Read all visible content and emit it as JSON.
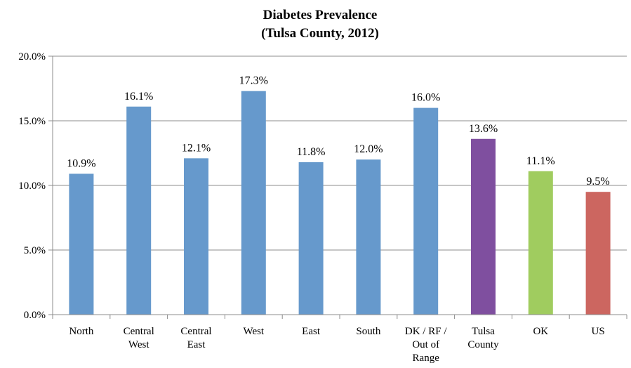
{
  "chart_data": {
    "type": "bar",
    "title": [
      "Diabetes Prevalence",
      "(Tulsa County, 2012)"
    ],
    "xlabel": "",
    "ylabel": "",
    "ylim": [
      0,
      20
    ],
    "yticks": [
      "0.0%",
      "5.0%",
      "10.0%",
      "15.0%",
      "20.0%"
    ],
    "grid": true,
    "categories": [
      [
        "North"
      ],
      [
        "Central",
        "West"
      ],
      [
        "Central",
        "East"
      ],
      [
        "West"
      ],
      [
        "East"
      ],
      [
        "South"
      ],
      [
        "DK / RF /",
        "Out of",
        "Range"
      ],
      [
        "Tulsa",
        "County"
      ],
      [
        "OK"
      ],
      [
        "US"
      ]
    ],
    "values": [
      10.9,
      16.1,
      12.1,
      17.3,
      11.8,
      12.0,
      16.0,
      13.6,
      11.1,
      9.5
    ],
    "data_labels": [
      "10.9%",
      "16.1%",
      "12.1%",
      "17.3%",
      "11.8%",
      "12.0%",
      "16.0%",
      "13.6%",
      "11.1%",
      "9.5%"
    ],
    "colors": [
      "#6699CC",
      "#6699CC",
      "#6699CC",
      "#6699CC",
      "#6699CC",
      "#6699CC",
      "#6699CC",
      "#7F4F9F",
      "#A0CC5F",
      "#CC6660"
    ]
  }
}
